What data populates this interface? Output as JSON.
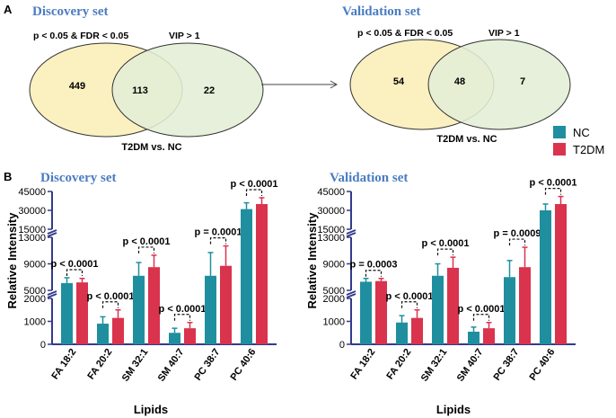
{
  "panel_a": {
    "letter": "A",
    "arrow": "→",
    "discovery": {
      "heading": "Discovery set",
      "left_label": "p < 0.05 & FDR < 0.05",
      "right_label": "VIP > 1",
      "left_only": "449",
      "overlap": "113",
      "right_only": "22",
      "footer": "T2DM vs. NC"
    },
    "validation": {
      "heading": "Validation set",
      "left_label": "p < 0.05 & FDR < 0.05",
      "right_label": "VIP > 1",
      "left_only": "54",
      "overlap": "48",
      "right_only": "7",
      "footer": "T2DM vs. NC"
    }
  },
  "panel_b": {
    "letter": "B"
  },
  "legend": [
    {
      "name": "NC",
      "color": "#1f8f9f"
    },
    {
      "name": "T2DM",
      "color": "#d9334d"
    }
  ],
  "colors": {
    "heading": "#4a7cc2",
    "venn_left": "#fbf0c0",
    "venn_right": "#e3eed5",
    "axis": "#333a8a"
  },
  "chart_data": [
    {
      "type": "bar",
      "title": "Discovery set",
      "xlabel": "Lipids",
      "ylabel": "Relative Intensity",
      "categories": [
        "FA 18:2",
        "FA 20:2",
        "SM 32:1",
        "SM 40:7",
        "PC 38:7",
        "PC 40:6"
      ],
      "series": [
        {
          "name": "NC",
          "values": [
            6100,
            900,
            7200,
            500,
            7200,
            31000
          ],
          "errors": [
            800,
            300,
            2000,
            200,
            3500,
            5000
          ]
        },
        {
          "name": "T2DM",
          "values": [
            6200,
            1150,
            8500,
            700,
            8700,
            35000
          ],
          "errors": [
            600,
            350,
            1800,
            250,
            3000,
            5000
          ]
        }
      ],
      "annotations": [
        "p < 0.0001",
        "p < 0.0001",
        "p < 0.0001",
        "p < 0.0001",
        "p = 0.0001",
        "p < 0.0001"
      ],
      "yaxis": {
        "broken": true,
        "segments": [
          [
            0,
            2000
          ],
          [
            5000,
            13000
          ],
          [
            15000,
            45000
          ]
        ],
        "ticks": [
          0,
          1000,
          2000,
          5000,
          9000,
          13000,
          15000,
          30000,
          45000
        ]
      }
    },
    {
      "type": "bar",
      "title": "Validation set",
      "xlabel": "Lipids",
      "ylabel": "Relative Intensity",
      "categories": [
        "FA 18:2",
        "FA 20:2",
        "SM 32:1",
        "SM 40:7",
        "PC 38:7",
        "PC 40:6"
      ],
      "series": [
        {
          "name": "NC",
          "values": [
            6300,
            950,
            7200,
            550,
            7000,
            30000
          ],
          "errors": [
            500,
            300,
            1800,
            200,
            2500,
            5000
          ]
        },
        {
          "name": "T2DM",
          "values": [
            6400,
            1150,
            8400,
            700,
            8500,
            35000
          ],
          "errors": [
            400,
            350,
            1600,
            250,
            3000,
            6000
          ]
        }
      ],
      "annotations": [
        "p = 0.0003",
        "p < 0.0001",
        "p < 0.0001",
        "p < 0.0001",
        "p = 0.0009",
        "p < 0.0001"
      ],
      "yaxis": {
        "broken": true,
        "segments": [
          [
            0,
            2000
          ],
          [
            5000,
            13000
          ],
          [
            15000,
            45000
          ]
        ],
        "ticks": [
          0,
          1000,
          2000,
          5000,
          9000,
          13000,
          15000,
          30000,
          45000
        ]
      }
    }
  ]
}
